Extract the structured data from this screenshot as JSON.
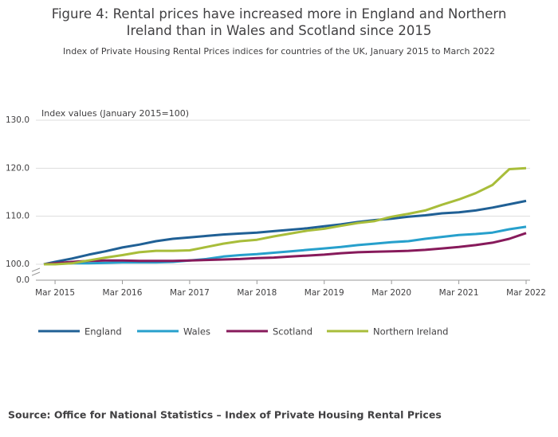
{
  "chart_data": {
    "type": "line",
    "title": "Figure 4: Rental prices have increased more in England and Northern Ireland than in Wales and Scotland since 2015",
    "subtitle": "Index of Private Housing Rental Prices indices for countries of the UK, January 2015 to March 2022",
    "y_label": "Index values (January 2015=100)",
    "source": "Source: Office for National Statistics – Index of Private Housing Rental Prices",
    "x": [
      "2015-01",
      "2015-03",
      "2015-06",
      "2015-09",
      "2015-12",
      "2016-03",
      "2016-06",
      "2016-09",
      "2016-12",
      "2017-03",
      "2017-06",
      "2017-09",
      "2017-12",
      "2018-03",
      "2018-06",
      "2018-09",
      "2018-12",
      "2019-03",
      "2019-06",
      "2019-09",
      "2019-12",
      "2020-03",
      "2020-06",
      "2020-09",
      "2020-12",
      "2021-03",
      "2021-06",
      "2021-09",
      "2021-12",
      "2022-03"
    ],
    "xlim": [
      "2015-01",
      "2022-03"
    ],
    "xticks": [
      {
        "value": "2015-03",
        "label": "Mar 2015"
      },
      {
        "value": "2016-03",
        "label": "Mar 2016"
      },
      {
        "value": "2017-03",
        "label": "Mar 2017"
      },
      {
        "value": "2018-03",
        "label": "Mar 2018"
      },
      {
        "value": "2019-03",
        "label": "Mar 2019"
      },
      {
        "value": "2020-03",
        "label": "Mar 2020"
      },
      {
        "value": "2021-03",
        "label": "Mar 2021"
      },
      {
        "value": "2022-03",
        "label": "Mar 2022"
      }
    ],
    "ylim": [
      0,
      130
    ],
    "y_axis_break": true,
    "yticks": [
      {
        "value": 0,
        "label": "0.0"
      },
      {
        "value": 100,
        "label": "100.0"
      },
      {
        "value": 110,
        "label": "110.0"
      },
      {
        "value": 120,
        "label": "120.0"
      },
      {
        "value": 130,
        "label": "130.0"
      }
    ],
    "grid": true,
    "legend": "bottom",
    "series": [
      {
        "name": "England",
        "color": "#206095",
        "values": [
          100,
          100.5,
          101.2,
          102,
          102.7,
          103.5,
          104.1,
          104.8,
          105.3,
          105.6,
          105.9,
          106.2,
          106.4,
          106.6,
          106.9,
          107.2,
          107.5,
          107.9,
          108.3,
          108.8,
          109.2,
          109.5,
          109.9,
          110.2,
          110.6,
          110.8,
          111.2,
          111.8,
          112.5,
          113.2
        ]
      },
      {
        "name": "Wales",
        "color": "#27a0cc",
        "values": [
          100,
          100.1,
          100.2,
          100.2,
          100.3,
          100.4,
          100.4,
          100.4,
          100.5,
          100.8,
          101.1,
          101.6,
          101.9,
          102.1,
          102.4,
          102.7,
          103.0,
          103.3,
          103.6,
          104.0,
          104.3,
          104.6,
          104.8,
          105.3,
          105.7,
          106.1,
          106.3,
          106.6,
          107.3,
          107.8
        ]
      },
      {
        "name": "Scotland",
        "color": "#871a5b",
        "values": [
          100,
          100.2,
          100.5,
          100.7,
          100.8,
          100.8,
          100.7,
          100.7,
          100.7,
          100.8,
          100.9,
          101.0,
          101.1,
          101.3,
          101.4,
          101.6,
          101.8,
          102.0,
          102.3,
          102.5,
          102.6,
          102.7,
          102.8,
          103.0,
          103.3,
          103.6,
          104.0,
          104.5,
          105.3,
          106.5
        ]
      },
      {
        "name": "Northern Ireland",
        "color": "#a8bd3a",
        "values": [
          100,
          100.0,
          100.2,
          100.8,
          101.4,
          101.9,
          102.5,
          102.8,
          102.8,
          102.9,
          103.6,
          104.3,
          104.8,
          105.1,
          105.8,
          106.4,
          107.0,
          107.4,
          108.0,
          108.6,
          109.0,
          109.9,
          110.5,
          111.2,
          112.4,
          113.5,
          114.8,
          116.5,
          119.8,
          120.0
        ]
      }
    ]
  }
}
